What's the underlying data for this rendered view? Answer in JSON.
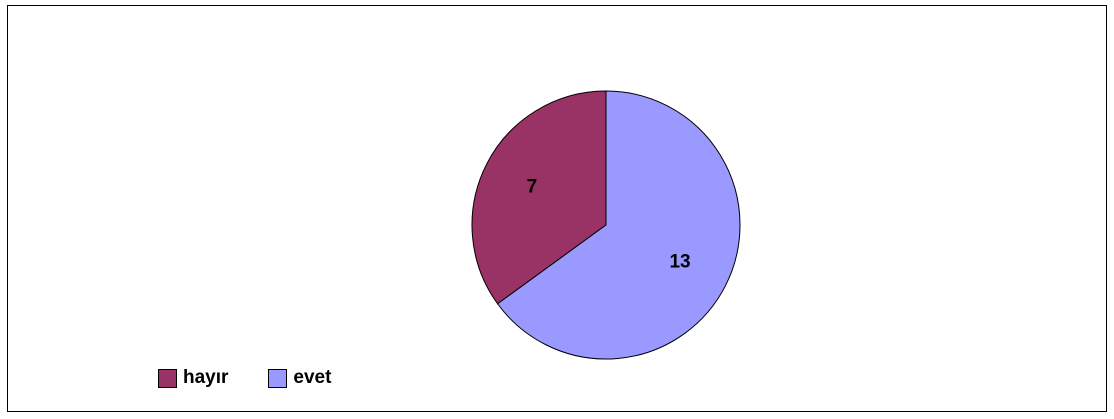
{
  "chart_data": {
    "type": "pie",
    "title": "",
    "slices": [
      {
        "label": "hayır",
        "value": 7,
        "color": "#993366"
      },
      {
        "label": "evet",
        "value": 13,
        "color": "#9999FF"
      }
    ],
    "start_angle_deg": 0,
    "direction": "counterclockwise",
    "legend_position": "bottom-left"
  }
}
